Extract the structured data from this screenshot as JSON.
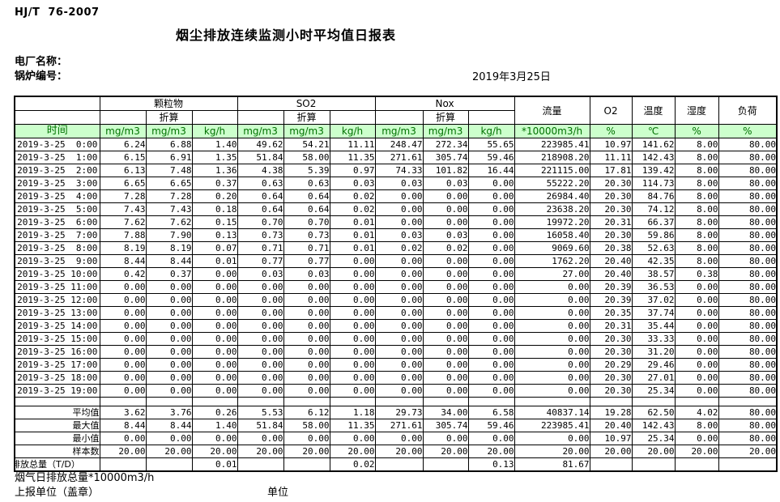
{
  "page": {
    "standard": "HJ/T  76-2007",
    "title": "烟尘排放连续监测小时平均值日报表",
    "plant_label": "电厂名称：",
    "boiler_label": "锅炉编号：",
    "date": "2019年3月25日"
  },
  "colors": {
    "units_row_bg": "#ccffcc",
    "units_row_text": "#007000"
  },
  "table": {
    "time_header": "时间",
    "groups": [
      {
        "label": "颗粒物",
        "converted_label": "折算"
      },
      {
        "label": "SO2",
        "converted_label": "折算"
      },
      {
        "label": "Nox",
        "converted_label": "折算"
      }
    ],
    "single_columns": [
      "流量",
      "O2",
      "温度",
      "湿度",
      "负荷"
    ],
    "units": [
      "mg/m3",
      "mg/m3",
      "kg/h",
      "mg/m3",
      "mg/m3",
      "kg/h",
      "mg/m3",
      "mg/m3",
      "kg/h",
      "*10000m3/h",
      "%",
      "℃",
      "%",
      "%"
    ],
    "rows": [
      {
        "time": "2019-3-25  0:00",
        "values": [
          "6.24",
          "6.88",
          "1.40",
          "49.62",
          "54.21",
          "11.11",
          "248.47",
          "272.34",
          "55.65",
          "223985.41",
          "10.97",
          "141.62",
          "8.00",
          "80.00"
        ]
      },
      {
        "time": "2019-3-25  1:00",
        "values": [
          "6.15",
          "6.91",
          "1.35",
          "51.84",
          "58.00",
          "11.35",
          "271.61",
          "305.74",
          "59.46",
          "218908.20",
          "11.11",
          "142.43",
          "8.00",
          "80.00"
        ]
      },
      {
        "time": "2019-3-25  2:00",
        "values": [
          "6.13",
          "7.48",
          "1.36",
          "4.38",
          "5.39",
          "0.97",
          "74.33",
          "101.82",
          "16.44",
          "221115.00",
          "17.81",
          "139.42",
          "8.00",
          "80.00"
        ]
      },
      {
        "time": "2019-3-25  3:00",
        "values": [
          "6.65",
          "6.65",
          "0.37",
          "0.63",
          "0.63",
          "0.03",
          "0.03",
          "0.03",
          "0.00",
          "55222.20",
          "20.30",
          "114.73",
          "8.00",
          "80.00"
        ]
      },
      {
        "time": "2019-3-25  4:00",
        "values": [
          "7.28",
          "7.28",
          "0.20",
          "0.64",
          "0.64",
          "0.02",
          "0.00",
          "0.00",
          "0.00",
          "26984.40",
          "20.30",
          "84.76",
          "8.00",
          "80.00"
        ]
      },
      {
        "time": "2019-3-25  5:00",
        "values": [
          "7.43",
          "7.43",
          "0.18",
          "0.64",
          "0.64",
          "0.02",
          "0.00",
          "0.00",
          "0.00",
          "23638.20",
          "20.30",
          "74.12",
          "8.00",
          "80.00"
        ]
      },
      {
        "time": "2019-3-25  6:00",
        "values": [
          "7.62",
          "7.62",
          "0.15",
          "0.70",
          "0.70",
          "0.01",
          "0.00",
          "0.00",
          "0.00",
          "19972.20",
          "20.31",
          "66.37",
          "8.00",
          "80.00"
        ]
      },
      {
        "time": "2019-3-25  7:00",
        "values": [
          "7.88",
          "7.90",
          "0.13",
          "0.73",
          "0.73",
          "0.01",
          "0.03",
          "0.03",
          "0.00",
          "16058.40",
          "20.30",
          "59.86",
          "8.00",
          "80.00"
        ]
      },
      {
        "time": "2019-3-25  8:00",
        "values": [
          "8.19",
          "8.19",
          "0.07",
          "0.71",
          "0.71",
          "0.01",
          "0.02",
          "0.02",
          "0.00",
          "9069.60",
          "20.38",
          "52.63",
          "8.00",
          "80.00"
        ]
      },
      {
        "time": "2019-3-25  9:00",
        "values": [
          "8.44",
          "8.44",
          "0.01",
          "0.77",
          "0.77",
          "0.00",
          "0.00",
          "0.00",
          "0.00",
          "1762.20",
          "20.40",
          "42.35",
          "8.00",
          "80.00"
        ]
      },
      {
        "time": "2019-3-25 10:00",
        "values": [
          "0.42",
          "0.37",
          "0.00",
          "0.03",
          "0.03",
          "0.00",
          "0.00",
          "0.00",
          "0.00",
          "27.00",
          "20.40",
          "38.57",
          "0.38",
          "80.00"
        ]
      },
      {
        "time": "2019-3-25 11:00",
        "values": [
          "0.00",
          "0.00",
          "0.00",
          "0.00",
          "0.00",
          "0.00",
          "0.00",
          "0.00",
          "0.00",
          "0.00",
          "20.39",
          "36.53",
          "0.00",
          "80.00"
        ]
      },
      {
        "time": "2019-3-25 12:00",
        "values": [
          "0.00",
          "0.00",
          "0.00",
          "0.00",
          "0.00",
          "0.00",
          "0.00",
          "0.00",
          "0.00",
          "0.00",
          "20.39",
          "37.02",
          "0.00",
          "80.00"
        ]
      },
      {
        "time": "2019-3-25 13:00",
        "values": [
          "0.00",
          "0.00",
          "0.00",
          "0.00",
          "0.00",
          "0.00",
          "0.00",
          "0.00",
          "0.00",
          "0.00",
          "20.35",
          "37.74",
          "0.00",
          "80.00"
        ]
      },
      {
        "time": "2019-3-25 14:00",
        "values": [
          "0.00",
          "0.00",
          "0.00",
          "0.00",
          "0.00",
          "0.00",
          "0.00",
          "0.00",
          "0.00",
          "0.00",
          "20.31",
          "35.44",
          "0.00",
          "80.00"
        ]
      },
      {
        "time": "2019-3-25 15:00",
        "values": [
          "0.00",
          "0.00",
          "0.00",
          "0.00",
          "0.00",
          "0.00",
          "0.00",
          "0.00",
          "0.00",
          "0.00",
          "20.30",
          "33.33",
          "0.00",
          "80.00"
        ]
      },
      {
        "time": "2019-3-25 16:00",
        "values": [
          "0.00",
          "0.00",
          "0.00",
          "0.00",
          "0.00",
          "0.00",
          "0.00",
          "0.00",
          "0.00",
          "0.00",
          "20.30",
          "31.20",
          "0.00",
          "80.00"
        ]
      },
      {
        "time": "2019-3-25 17:00",
        "values": [
          "0.00",
          "0.00",
          "0.00",
          "0.00",
          "0.00",
          "0.00",
          "0.00",
          "0.00",
          "0.00",
          "0.00",
          "20.29",
          "29.46",
          "0.00",
          "80.00"
        ]
      },
      {
        "time": "2019-3-25 18:00",
        "values": [
          "0.00",
          "0.00",
          "0.00",
          "0.00",
          "0.00",
          "0.00",
          "0.00",
          "0.00",
          "0.00",
          "0.00",
          "20.30",
          "27.01",
          "0.00",
          "80.00"
        ]
      },
      {
        "time": "2019-3-25 19:00",
        "values": [
          "0.00",
          "0.00",
          "0.00",
          "0.00",
          "0.00",
          "0.00",
          "0.00",
          "0.00",
          "0.00",
          "0.00",
          "20.30",
          "25.34",
          "0.00",
          "80.00"
        ]
      }
    ],
    "summary_rows": [
      {
        "label": "平均值",
        "values": [
          "3.62",
          "3.76",
          "0.26",
          "5.53",
          "6.12",
          "1.18",
          "29.73",
          "34.00",
          "6.58",
          "40837.14",
          "19.28",
          "62.50",
          "4.02",
          "80.00"
        ]
      },
      {
        "label": "最大值",
        "values": [
          "8.44",
          "8.44",
          "1.40",
          "51.84",
          "58.00",
          "11.35",
          "271.61",
          "305.74",
          "59.46",
          "223985.41",
          "20.40",
          "142.43",
          "8.00",
          "80.00"
        ]
      },
      {
        "label": "最小值",
        "values": [
          "0.00",
          "0.00",
          "0.00",
          "0.00",
          "0.00",
          "0.00",
          "0.00",
          "0.00",
          "0.00",
          "0.00",
          "10.97",
          "25.34",
          "0.00",
          "80.00"
        ]
      },
      {
        "label": "样本数",
        "values": [
          "20.00",
          "20.00",
          "20.00",
          "20.00",
          "20.00",
          "20.00",
          "20.00",
          "20.00",
          "20.00",
          "20.00",
          "20.00",
          "20.00",
          "20.00",
          "20.00"
        ]
      },
      {
        "label": "日排放总量（T/D）",
        "values": [
          "",
          "",
          "0.01",
          "",
          "",
          "0.02",
          "",
          "",
          "0.13",
          "81.67",
          "",
          "",
          "",
          ""
        ]
      }
    ]
  },
  "footer": {
    "flow_total_note": "烟气日排放总量*10000m3/h",
    "report_unit_label": "上报单位（盖章）",
    "unit_label": "单位"
  }
}
